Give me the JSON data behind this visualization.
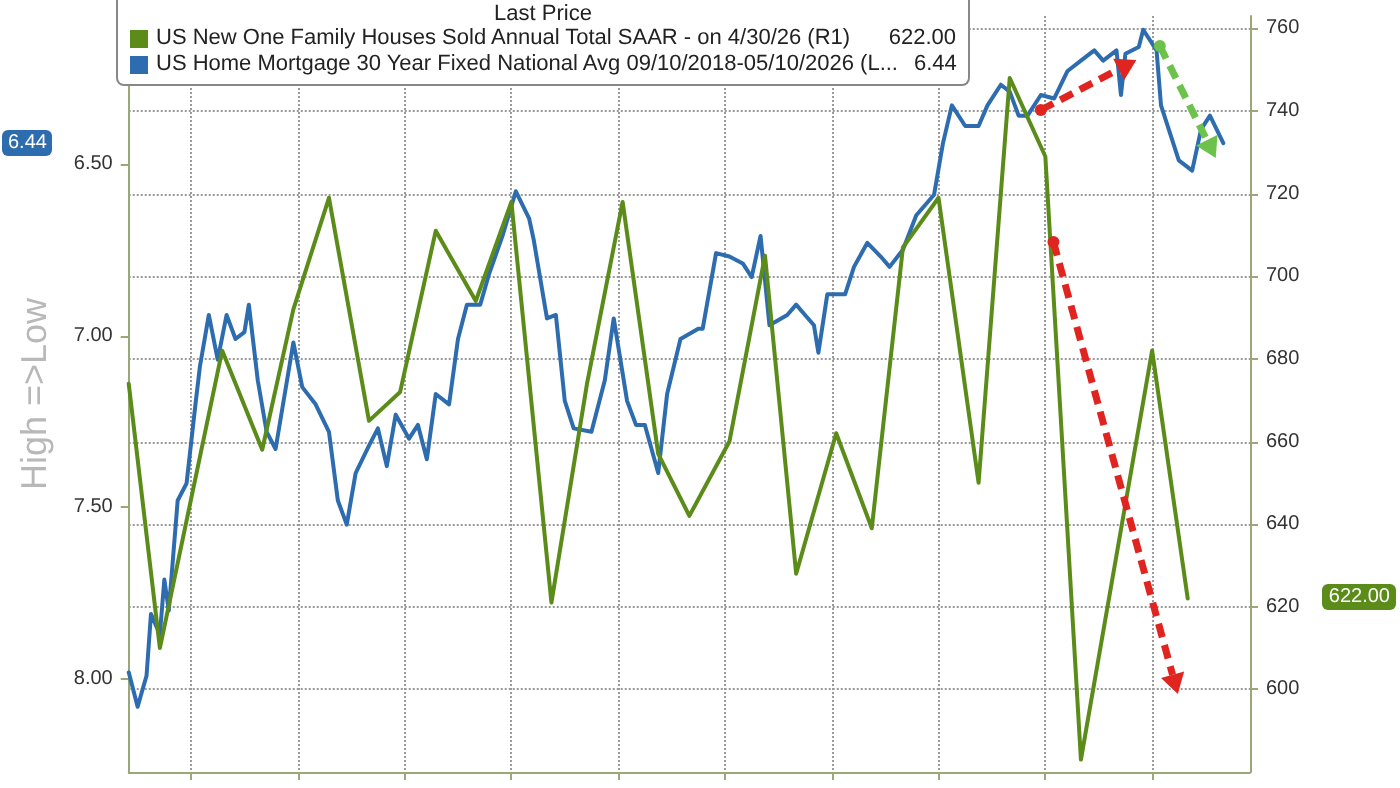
{
  "chart_data": {
    "type": "line",
    "legend_title": "Last Price",
    "ylabel": "High =>Low",
    "categories": [
      null,
      null,
      null,
      null,
      null,
      null,
      null,
      null,
      null,
      null,
      null,
      null,
      null,
      null,
      null,
      null,
      null,
      null,
      null,
      null,
      null,
      null,
      null,
      null,
      null,
      null,
      null,
      null,
      null,
      null,
      null,
      null,
      null,
      null,
      null,
      null,
      null,
      null,
      null,
      null,
      null,
      null,
      null,
      null,
      null,
      null,
      null,
      null,
      null,
      null,
      null,
      null,
      null,
      null,
      null,
      null,
      null,
      null,
      null,
      null,
      null,
      null,
      null,
      null,
      null,
      null,
      null,
      null,
      null,
      null,
      null,
      null,
      null,
      null,
      null,
      null,
      null,
      null,
      null,
      null,
      null,
      null,
      null,
      null,
      null,
      null,
      null,
      null,
      null,
      null,
      null,
      null,
      null,
      null,
      null,
      null,
      null,
      null,
      null,
      null,
      null,
      null,
      null,
      null,
      null,
      null,
      null,
      null,
      null,
      null,
      null,
      null,
      null,
      null,
      null,
      null,
      null,
      null,
      null,
      null,
      null,
      null,
      null,
      null,
      null,
      null,
      null,
      null,
      null,
      null,
      null,
      null,
      null,
      null,
      null,
      null,
      null,
      null,
      null,
      null,
      null,
      null,
      null,
      null,
      null,
      null,
      null,
      null,
      null,
      null,
      null,
      null,
      null,
      null,
      null,
      null,
      null,
      null,
      null,
      null,
      null,
      null,
      null,
      null,
      null,
      null,
      null,
      null,
      null,
      null,
      null,
      null,
      null,
      null,
      null,
      null,
      null,
      null,
      null,
      null,
      null,
      null,
      null,
      null,
      null,
      null,
      null,
      null,
      null,
      null,
      null,
      null,
      null,
      null,
      null,
      null,
      null,
      null,
      null,
      null,
      null,
      null,
      null,
      null,
      null,
      null,
      null,
      null,
      null,
      null,
      null,
      null,
      null,
      null,
      null,
      null,
      null,
      null,
      null,
      null,
      null,
      null,
      null,
      null,
      null,
      null,
      null,
      null,
      null,
      null,
      null,
      null,
      null,
      null,
      null,
      null,
      null,
      null,
      null,
      null,
      null,
      null,
      null,
      null,
      null,
      null,
      null,
      null,
      null,
      null,
      null,
      null,
      null
    ],
    "series": [
      {
        "name": "US New One Family Houses Sold Annual Total SAAR - on 4/30/26 (R1)",
        "color": "#5b8c1a",
        "axis": "y2",
        "values": [
          674,
          null,
          null,
          null,
          null,
          null,
          null,
          610,
          null,
          null,
          null,
          null,
          null,
          null,
          null,
          null,
          null,
          null,
          null,
          null,
          null,
          682,
          null,
          null,
          null,
          null,
          null,
          null,
          null,
          null,
          658,
          null,
          null,
          null,
          null,
          null,
          null,
          692,
          null,
          null,
          null,
          null,
          null,
          null,
          null,
          719,
          null,
          null,
          null,
          null,
          null,
          null,
          null,
          null,
          665,
          null,
          null,
          null,
          null,
          null,
          null,
          672,
          null,
          null,
          null,
          null,
          null,
          null,
          null,
          711,
          null,
          null,
          null,
          null,
          null,
          null,
          null,
          null,
          694,
          null,
          null,
          null,
          null,
          null,
          null,
          null,
          718,
          null,
          null,
          null,
          null,
          null,
          null,
          null,
          null,
          621,
          null,
          null,
          null,
          null,
          null,
          null,
          null,
          674,
          null,
          null,
          null,
          null,
          null,
          null,
          null,
          718,
          null,
          null,
          null,
          null,
          null,
          null,
          null,
          657,
          null,
          null,
          null,
          null,
          null,
          null,
          642,
          null,
          null,
          null,
          null,
          null,
          null,
          null,
          null,
          660,
          null,
          null,
          null,
          null,
          null,
          null,
          null,
          705,
          null,
          null,
          null,
          null,
          null,
          null,
          628,
          null,
          null,
          null,
          null,
          null,
          null,
          null,
          null,
          662,
          null,
          null,
          null,
          null,
          null,
          null,
          null,
          639,
          null,
          null,
          null,
          null,
          null,
          null,
          707,
          null,
          null,
          null,
          null,
          null,
          null,
          null,
          719,
          null,
          null,
          null,
          null,
          null,
          null,
          null,
          null,
          650,
          null,
          null,
          null,
          null,
          null,
          null,
          748,
          null,
          null,
          null,
          null,
          null,
          null,
          null,
          729,
          null,
          null,
          null,
          null,
          null,
          null,
          null,
          583,
          null,
          null,
          null,
          null,
          null,
          null,
          null,
          null,
          null,
          null,
          null,
          null,
          null,
          null,
          null,
          682,
          null,
          null,
          null,
          null,
          null,
          null,
          null,
          622,
          null,
          null,
          null,
          null,
          null,
          null,
          null,
          null,
          null,
          null,
          null,
          null,
          null,
          null
        ]
      },
      {
        "name": "US Home Mortgage 30 Year Fixed National Avg 09/10/2018-05/10/2026 (L...",
        "color": "#2e6cb0",
        "values": [
          7.98,
          null,
          8.08,
          null,
          7.99,
          7.81,
          null,
          7.87,
          7.71,
          7.8,
          null,
          7.48,
          null,
          7.43,
          null,
          7.2,
          7.09,
          null,
          6.94,
          null,
          7.07,
          null,
          6.94,
          null,
          7.01,
          null,
          6.99,
          6.91,
          null,
          7.13,
          null,
          7.28,
          null,
          7.33,
          null,
          null,
          null,
          7.02,
          null,
          7.15,
          null,
          null,
          7.2,
          null,
          null,
          7.28,
          null,
          7.48,
          null,
          7.55,
          null,
          7.4,
          null,
          null,
          7.32,
          null,
          7.27,
          null,
          7.38,
          null,
          7.23,
          null,
          null,
          7.3,
          null,
          7.26,
          null,
          7.36,
          null,
          7.17,
          null,
          null,
          7.2,
          null,
          7.01,
          null,
          6.91,
          null,
          null,
          6.91,
          null,
          6.82,
          null,
          null,
          6.71,
          null,
          null,
          6.58,
          null,
          null,
          6.66,
          6.72,
          null,
          null,
          6.95,
          null,
          6.94,
          null,
          7.19,
          null,
          7.27,
          null,
          null,
          null,
          7.28,
          null,
          null,
          7.13,
          null,
          6.95,
          null,
          null,
          7.19,
          null,
          7.26,
          null,
          7.26,
          null,
          null,
          7.4,
          null,
          7.17,
          null,
          null,
          7.01,
          null,
          null,
          null,
          6.98,
          6.98,
          null,
          null,
          6.76,
          null,
          null,
          6.77,
          null,
          null,
          6.79,
          null,
          6.83,
          null,
          6.71,
          null,
          6.97,
          null,
          null,
          null,
          6.94,
          null,
          6.91,
          null,
          6.94,
          null,
          6.97,
          7.05,
          null,
          6.88,
          null,
          null,
          null,
          6.88,
          null,
          6.8,
          null,
          null,
          6.73,
          null,
          null,
          6.77,
          null,
          6.8,
          null,
          null,
          6.75,
          null,
          null,
          6.65,
          null,
          null,
          null,
          6.59,
          null,
          6.44,
          null,
          6.33,
          null,
          null,
          6.39,
          null,
          null,
          6.39,
          null,
          6.33,
          null,
          null,
          6.27,
          null,
          6.29,
          null,
          6.36,
          null,
          6.36,
          null,
          null,
          6.3,
          null,
          null,
          6.31,
          null,
          null,
          6.23,
          null,
          null,
          6.2,
          null,
          null,
          6.17,
          null,
          6.2,
          null,
          null,
          6.17,
          6.3,
          6.18,
          null,
          null,
          6.16,
          6.11,
          null,
          null,
          6.17,
          6.33,
          null,
          6.41,
          null,
          6.49,
          null,
          null,
          6.52,
          null,
          6.4,
          null,
          6.36,
          null,
          null,
          6.44,
          null,
          null,
          null,
          null,
          null,
          null
        ]
      }
    ],
    "ylim": [
      8.27,
      6.07
    ],
    "yticks": [
      {
        "value": 6.5,
        "label": "6.50"
      },
      {
        "value": 7.0,
        "label": "7.00"
      },
      {
        "value": 7.5,
        "label": "7.50"
      },
      {
        "value": 8.0,
        "label": "8.00"
      }
    ],
    "y2lim": [
      580,
      763
    ],
    "y2ticks": [
      600,
      620,
      640,
      660,
      680,
      700,
      720,
      740,
      760
    ],
    "annotations": [
      "622.00",
      "6.44"
    ],
    "grid": true,
    "legend": "top"
  }
}
